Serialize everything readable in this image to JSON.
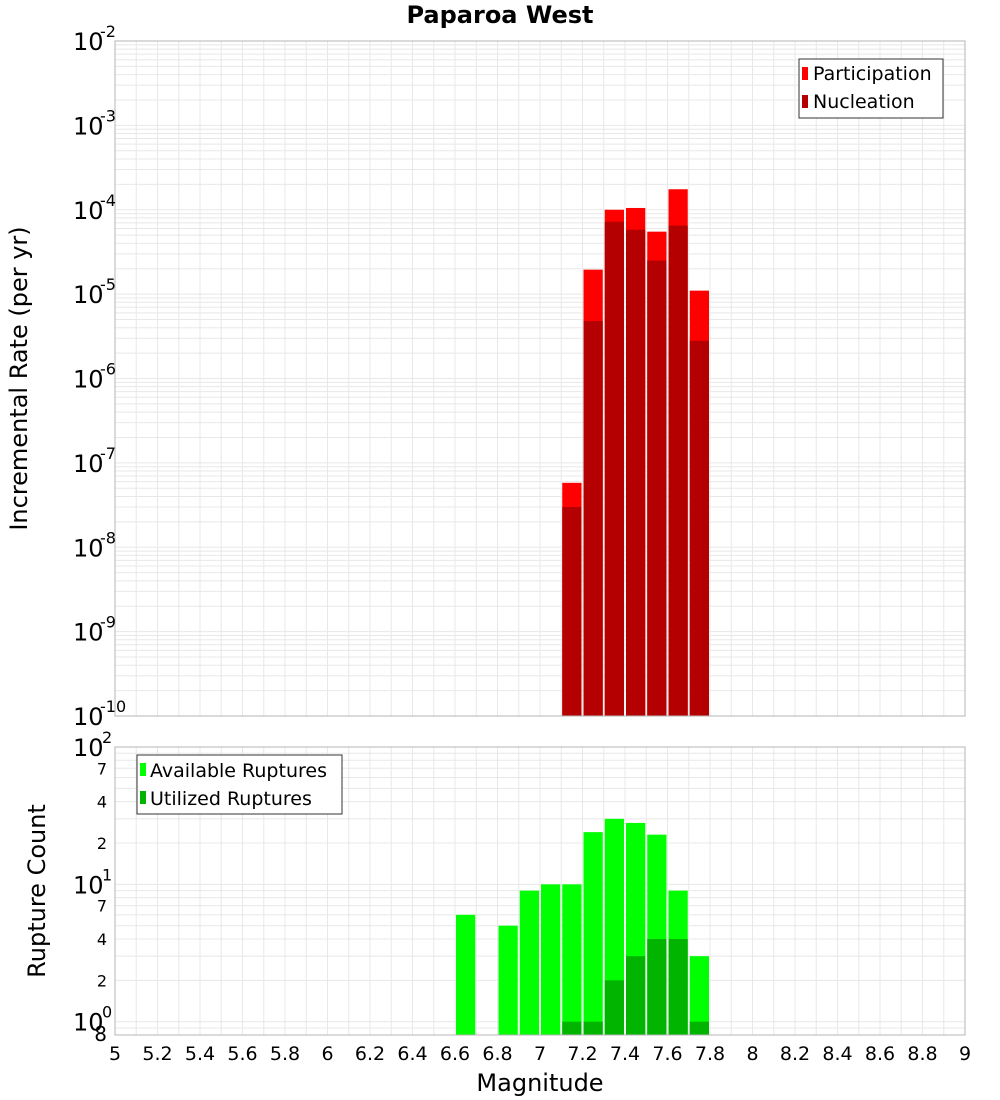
{
  "colors": {
    "participation": "#ff0000",
    "nucleation": "#b40000",
    "available": "#00ff00",
    "utilized": "#00b400",
    "grid": "#e8e8e8",
    "plot_border": "#b4b4b4"
  },
  "chart_data": [
    {
      "type": "bar",
      "title": "Paparoa West",
      "xlabel": "",
      "ylabel": "Incremental Rate (per yr)",
      "y_scale": "log",
      "xlim": [
        5,
        9
      ],
      "ylim": [
        1e-10,
        0.01
      ],
      "y_ticks": [
        {
          "base": "10",
          "exp": "-10",
          "value": 1e-10
        },
        {
          "base": "10",
          "exp": "-9",
          "value": 1e-09
        },
        {
          "base": "10",
          "exp": "-8",
          "value": 1e-08
        },
        {
          "base": "10",
          "exp": "-7",
          "value": 1e-07
        },
        {
          "base": "10",
          "exp": "-6",
          "value": 1e-06
        },
        {
          "base": "10",
          "exp": "-5",
          "value": 1e-05
        },
        {
          "base": "10",
          "exp": "-4",
          "value": 0.0001
        },
        {
          "base": "10",
          "exp": "-3",
          "value": 0.001
        },
        {
          "base": "10",
          "exp": "-2",
          "value": 0.01
        }
      ],
      "bin_width": 0.1,
      "grid": true,
      "legend_position": "top-right",
      "series": [
        {
          "name": "Participation",
          "x": [
            7.15,
            7.25,
            7.35,
            7.45,
            7.55,
            7.65,
            7.75
          ],
          "values": [
            5.8e-08,
            1.95e-05,
            0.0001,
            0.000105,
            5.5e-05,
            0.000175,
            1.1e-05
          ]
        },
        {
          "name": "Nucleation",
          "x": [
            7.15,
            7.25,
            7.35,
            7.45,
            7.55,
            7.65,
            7.75
          ],
          "values": [
            3e-08,
            4.8e-06,
            7.2e-05,
            5.8e-05,
            2.5e-05,
            6.5e-05,
            2.8e-06
          ]
        }
      ]
    },
    {
      "type": "bar",
      "title": "",
      "xlabel": "Magnitude",
      "ylabel": "Rupture Count",
      "y_scale": "log",
      "xlim": [
        5,
        9
      ],
      "ylim": [
        0.8,
        100
      ],
      "x_ticks": [
        "5",
        "5.2",
        "5.4",
        "5.6",
        "5.8",
        "6",
        "6.2",
        "6.4",
        "6.6",
        "6.8",
        "7",
        "7.2",
        "7.4",
        "7.6",
        "7.8",
        "8",
        "8.2",
        "8.4",
        "8.6",
        "8.8",
        "9"
      ],
      "y_major_ticks": [
        {
          "base": "10",
          "exp": "0",
          "value": 1
        },
        {
          "base": "10",
          "exp": "1",
          "value": 10
        },
        {
          "base": "10",
          "exp": "2",
          "value": 100
        }
      ],
      "y_minor_ticks": [
        {
          "label": "8",
          "value": 0.8
        },
        {
          "label": "2",
          "value": 2
        },
        {
          "label": "4",
          "value": 4
        },
        {
          "label": "7",
          "value": 7
        },
        {
          "label": "2",
          "value": 20
        },
        {
          "label": "4",
          "value": 40
        },
        {
          "label": "7",
          "value": 70
        }
      ],
      "bin_width": 0.1,
      "grid": true,
      "legend_position": "top-left",
      "series": [
        {
          "name": "Available Ruptures",
          "x": [
            6.65,
            6.85,
            6.95,
            7.05,
            7.15,
            7.25,
            7.35,
            7.45,
            7.55,
            7.65,
            7.75
          ],
          "values": [
            6,
            5,
            9,
            10,
            10,
            24,
            30,
            28,
            23,
            9,
            3
          ]
        },
        {
          "name": "Utilized Ruptures",
          "x": [
            7.15,
            7.25,
            7.35,
            7.45,
            7.55,
            7.65,
            7.75
          ],
          "values": [
            1,
            1,
            2,
            3,
            4,
            4,
            1
          ]
        }
      ]
    }
  ]
}
